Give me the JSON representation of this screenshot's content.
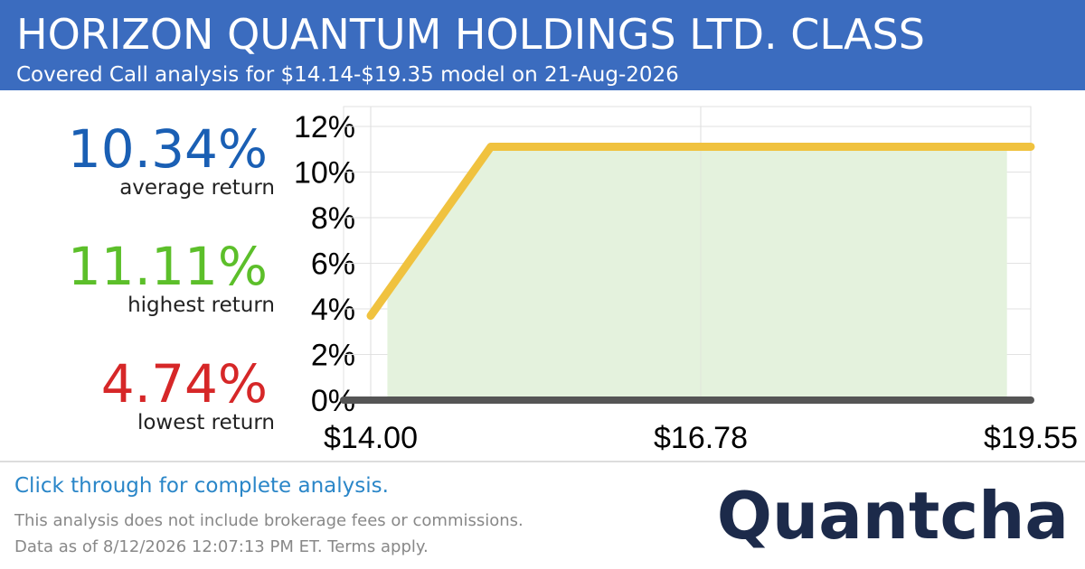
{
  "header": {
    "title": "HORIZON QUANTUM HOLDINGS LTD. CLASS",
    "subtitle": "Covered Call analysis for $14.14-$19.35 model on 21-Aug-2026"
  },
  "stats": [
    {
      "value": "10.34%",
      "label": "average return",
      "color": "#1a5fb4"
    },
    {
      "value": "11.11%",
      "label": "highest return",
      "color": "#5cbf2a"
    },
    {
      "value": "4.74%",
      "label": "lowest return",
      "color": "#d62728"
    }
  ],
  "chart_data": {
    "type": "line",
    "xlim": [
      14.0,
      19.55
    ],
    "ylim": [
      0,
      12
    ],
    "xticks": [
      {
        "value": 14.0,
        "label": "$14.00"
      },
      {
        "value": 16.775,
        "label": "$16.78"
      },
      {
        "value": 19.55,
        "label": "$19.55"
      }
    ],
    "yticks": [
      {
        "value": 0,
        "label": "0%"
      },
      {
        "value": 2,
        "label": "2%"
      },
      {
        "value": 4,
        "label": "4%"
      },
      {
        "value": 6,
        "label": "6%"
      },
      {
        "value": 8,
        "label": "8%"
      },
      {
        "value": 10,
        "label": "10%"
      },
      {
        "value": 12,
        "label": "12%"
      }
    ],
    "grid": true,
    "series": [
      {
        "color": "#e4f2dd",
        "fill": true,
        "x": [
          14.14,
          15.01,
          19.35
        ],
        "values": [
          4.74,
          11.11,
          11.11
        ]
      },
      {
        "color": "#f0c23f",
        "fill": false,
        "x": [
          14.0,
          15.01,
          19.55
        ],
        "values": [
          3.7,
          11.11,
          11.11
        ]
      }
    ]
  },
  "footer": {
    "cta": "Click through for complete analysis.",
    "note": "This analysis does not include brokerage fees or commissions.",
    "date": "Data as of 8/12/2026 12:07:13 PM ET. Terms apply.",
    "logo": "Quantcha"
  }
}
